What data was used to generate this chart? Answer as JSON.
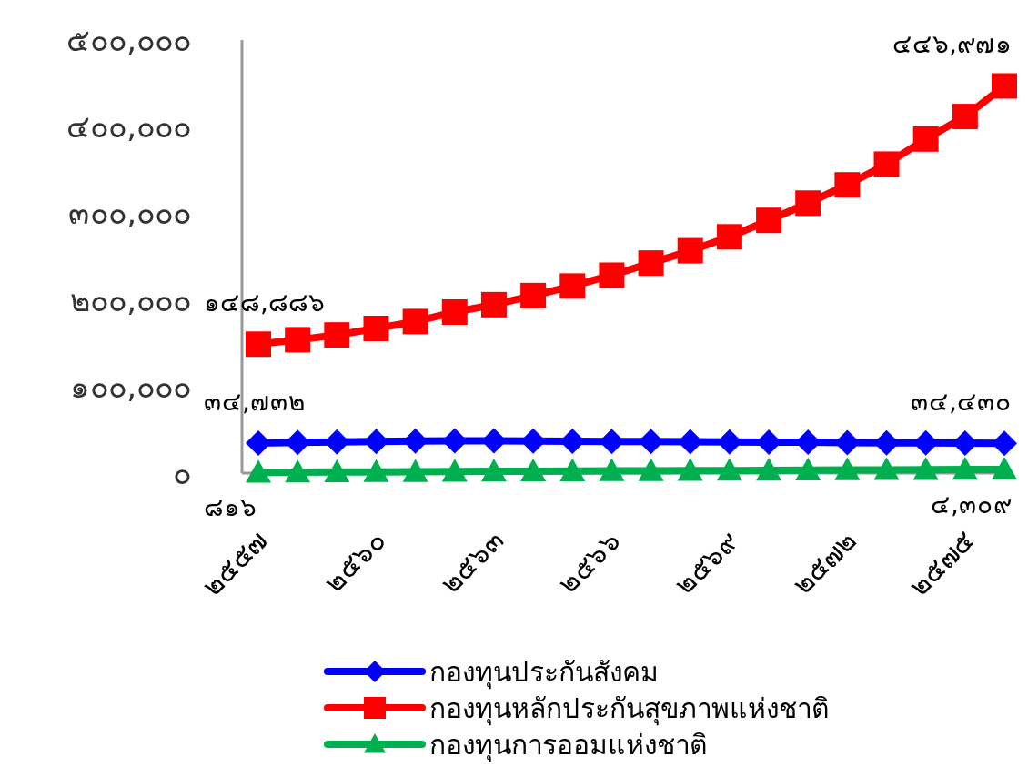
{
  "chart_data": {
    "type": "line",
    "categories": [
      "๒๕๕๗",
      null,
      null,
      "๒๕๖๐",
      null,
      null,
      "๒๕๖๓",
      null,
      null,
      "๒๕๖๖",
      null,
      null,
      "๒๕๖๙",
      null,
      null,
      "๒๕๗๒",
      null,
      null,
      "๒๕๗๕",
      null
    ],
    "series": [
      {
        "name": "กองทุนประกันสังคม",
        "color": "#0000ff",
        "marker": "diamond",
        "values": [
          34732,
          35500,
          36000,
          36500,
          37000,
          37200,
          37200,
          37000,
          36800,
          36600,
          36400,
          36200,
          36000,
          35800,
          35600,
          35300,
          35000,
          34800,
          34600,
          34430
        ],
        "value_labels": [
          "๓๔,๗๓๒",
          null,
          null,
          null,
          null,
          null,
          null,
          null,
          null,
          null,
          null,
          null,
          null,
          null,
          null,
          null,
          null,
          null,
          null,
          "๓๔,๔๓๐"
        ]
      },
      {
        "name": "กองทุนหลักประกันสุขภาพแห่งชาติ",
        "color": "#ff0000",
        "marker": "square",
        "values": [
          148886,
          154000,
          159500,
          167000,
          175000,
          186000,
          194500,
          205000,
          216000,
          228500,
          242500,
          256700,
          272800,
          291800,
          311700,
          332800,
          356700,
          385700,
          411700,
          446971
        ],
        "value_labels": [
          "๑๔๘,๘๘๖",
          null,
          null,
          null,
          null,
          null,
          null,
          null,
          null,
          null,
          null,
          null,
          null,
          null,
          null,
          null,
          null,
          null,
          null,
          "๔๔๖,๙๗๑"
        ]
      },
      {
        "name": "กองทุนการออมแห่งชาติ",
        "color": "#00b050",
        "marker": "triangle",
        "values": [
          816,
          1000,
          1200,
          1400,
          1600,
          1800,
          2000,
          2200,
          2400,
          2550,
          2700,
          2850,
          3000,
          3200,
          3400,
          3600,
          3800,
          3950,
          4150,
          4309
        ],
        "value_labels": [
          "๘๑๖",
          null,
          null,
          null,
          null,
          null,
          null,
          null,
          null,
          null,
          null,
          null,
          null,
          null,
          null,
          null,
          null,
          null,
          null,
          "๔,๓๐๙"
        ]
      }
    ],
    "ylim": [
      0,
      500000
    ],
    "yticks": [
      {
        "value": 0,
        "label": "๐"
      },
      {
        "value": 100000,
        "label": "๑๐๐,๐๐๐"
      },
      {
        "value": 200000,
        "label": "๒๐๐,๐๐๐"
      },
      {
        "value": 300000,
        "label": "๓๐๐,๐๐๐"
      },
      {
        "value": 400000,
        "label": "๔๐๐,๐๐๐"
      },
      {
        "value": 500000,
        "label": "๕๐๐,๐๐๐"
      }
    ],
    "grid": false,
    "legend": "bottom",
    "line_style": "solid"
  }
}
